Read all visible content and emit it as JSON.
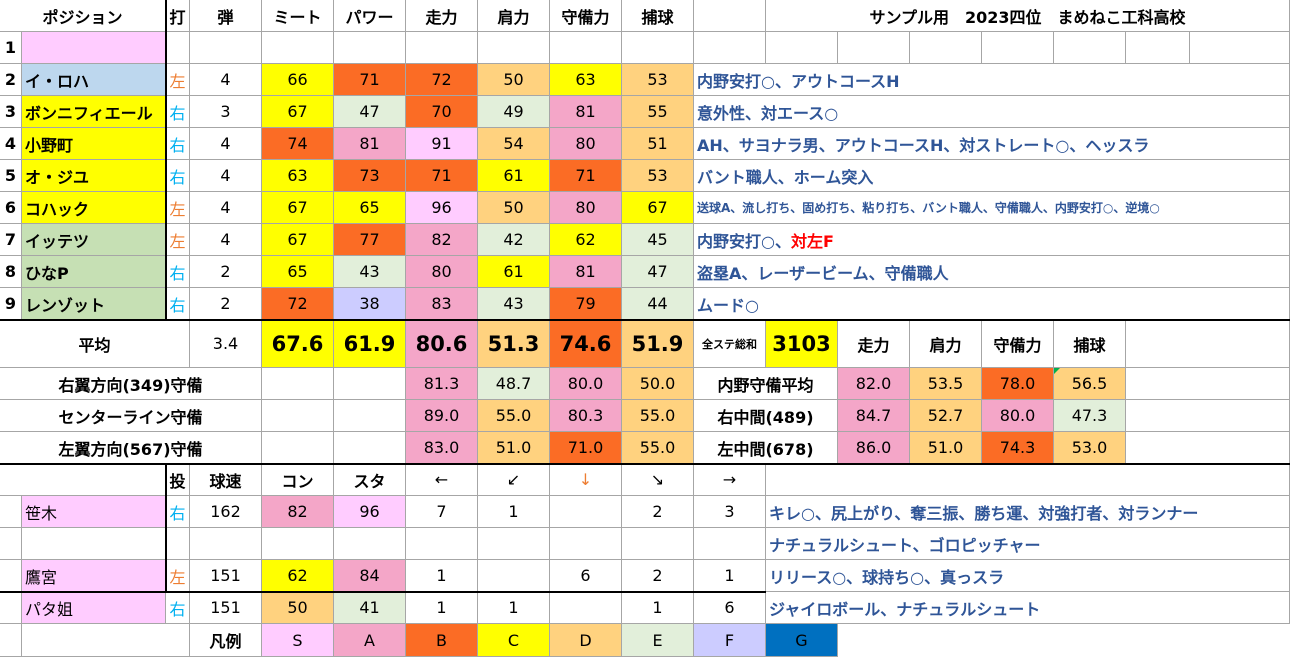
{
  "colors": {
    "S": "#ffccff",
    "A": "#f4a6c8",
    "B": "#fb6c25",
    "C": "#ffff00",
    "D": "#ffd27f",
    "E": "#e2efda",
    "F": "#ccccff",
    "G": "#0070c0",
    "light_blue": "#bdd7ee",
    "light_green": "#c6e0b4",
    "left": "#ed7d31",
    "right": "#00b0f0",
    "note": "#2f5597"
  },
  "header": {
    "position": "ポジション",
    "bat": "打",
    "ballistic": "弾",
    "meet": "ミート",
    "power": "パワー",
    "run": "走力",
    "arm": "肩力",
    "defense": "守備力",
    "catch": "捕球",
    "title": "サンプル用　2023四位　まめねこ工科高校"
  },
  "batters": [
    {
      "no": "1",
      "name": "",
      "hand": "",
      "ballistic": "",
      "meet": "",
      "power": "",
      "run": "",
      "arm": "",
      "defense": "",
      "catch": "",
      "note": ""
    },
    {
      "no": "2",
      "name": "イ・ロハ",
      "hand": "左",
      "ballistic": "4",
      "meet": "66",
      "power": "71",
      "run": "72",
      "arm": "50",
      "defense": "63",
      "catch": "53",
      "note": "内野安打○、アウトコースH"
    },
    {
      "no": "3",
      "name": "ボンニフィエール",
      "hand": "右",
      "ballistic": "3",
      "meet": "67",
      "power": "47",
      "run": "70",
      "arm": "49",
      "defense": "81",
      "catch": "55",
      "note": "意外性、対エース○"
    },
    {
      "no": "4",
      "name": "小野町",
      "hand": "右",
      "ballistic": "4",
      "meet": "74",
      "power": "81",
      "run": "91",
      "arm": "54",
      "defense": "80",
      "catch": "51",
      "note": "AH、サヨナラ男、アウトコースH、対ストレート○、ヘッスラ"
    },
    {
      "no": "5",
      "name": "オ・ジユ",
      "hand": "右",
      "ballistic": "4",
      "meet": "63",
      "power": "73",
      "run": "71",
      "arm": "61",
      "defense": "71",
      "catch": "53",
      "note": "バント職人、ホーム突入"
    },
    {
      "no": "6",
      "name": "コハック",
      "hand": "左",
      "ballistic": "4",
      "meet": "67",
      "power": "65",
      "run": "96",
      "arm": "50",
      "defense": "80",
      "catch": "67",
      "note": "送球A、流し打ち、固め打ち、粘り打ち、バント職人、守備職人、内野安打○、逆境○"
    },
    {
      "no": "7",
      "name": "イッテツ",
      "hand": "左",
      "ballistic": "4",
      "meet": "67",
      "power": "77",
      "run": "82",
      "arm": "42",
      "defense": "62",
      "catch": "45",
      "note": "内野安打○、",
      "note_red": "対左F"
    },
    {
      "no": "8",
      "name": "ひなP",
      "hand": "右",
      "ballistic": "2",
      "meet": "65",
      "power": "43",
      "run": "80",
      "arm": "61",
      "defense": "81",
      "catch": "47",
      "note": "盗塁A、レーザービーム、守備職人"
    },
    {
      "no": "9",
      "name": "レンゾット",
      "hand": "右",
      "ballistic": "2",
      "meet": "72",
      "power": "38",
      "run": "83",
      "arm": "43",
      "defense": "79",
      "catch": "44",
      "note": "ムード○"
    }
  ],
  "averages": {
    "label": "平均",
    "ballistic": "3.4",
    "meet": "67.6",
    "power": "61.9",
    "run": "80.6",
    "arm": "51.3",
    "defense": "74.6",
    "catch": "51.9",
    "total_label": "全ステ総和",
    "total": "3103",
    "h_run": "走力",
    "h_arm": "肩力",
    "h_defense": "守備力",
    "h_catch": "捕球"
  },
  "defense_rows": [
    {
      "label": "右翼方向(349)守備",
      "run": "81.3",
      "arm": "48.7",
      "defense": "80.0",
      "catch": "50.0",
      "r_label": "内野守備平均",
      "r_run": "82.0",
      "r_arm": "53.5",
      "r_defense": "78.0",
      "r_catch": "56.5"
    },
    {
      "label": "センターライン守備",
      "run": "89.0",
      "arm": "55.0",
      "defense": "80.3",
      "catch": "55.0",
      "r_label": "右中間(489)",
      "r_run": "84.7",
      "r_arm": "52.7",
      "r_defense": "80.0",
      "r_catch": "47.3"
    },
    {
      "label": "左翼方向(567)守備",
      "run": "83.0",
      "arm": "51.0",
      "defense": "71.0",
      "catch": "55.0",
      "r_label": "左中間(678)",
      "r_run": "86.0",
      "r_arm": "51.0",
      "r_defense": "74.3",
      "r_catch": "53.0"
    }
  ],
  "pitcher_header": {
    "throw": "投",
    "speed": "球速",
    "control": "コン",
    "stamina": "スタ",
    "d1": "←",
    "d2": "↙",
    "d3": "↓",
    "d4": "↘",
    "d5": "→"
  },
  "pitchers": [
    {
      "name": "笹木",
      "hand": "右",
      "speed": "162",
      "control": "82",
      "stamina": "96",
      "d1": "7",
      "d2": "1",
      "d3": "",
      "d4": "2",
      "d5": "3",
      "note": "キレ○、尻上がり、奪三振、勝ち運、対強打者、対ランナー"
    },
    {
      "name": "",
      "hand": "",
      "speed": "",
      "control": "",
      "stamina": "",
      "d1": "",
      "d2": "",
      "d3": "",
      "d4": "",
      "d5": "",
      "note": "ナチュラルシュート、ゴロピッチャー"
    },
    {
      "name": "鷹宮",
      "hand": "左",
      "speed": "151",
      "control": "62",
      "stamina": "84",
      "d1": "1",
      "d2": "",
      "d3": "6",
      "d4": "2",
      "d5": "1",
      "note": "リリース○、球持ち○、真っスラ"
    },
    {
      "name": "パタ姐",
      "hand": "右",
      "speed": "151",
      "control": "50",
      "stamina": "41",
      "d1": "1",
      "d2": "1",
      "d3": "",
      "d4": "1",
      "d5": "6",
      "note": "ジャイロボール、ナチュラルシュート"
    }
  ],
  "legend": {
    "label": "凡例",
    "items": [
      "S",
      "A",
      "B",
      "C",
      "D",
      "E",
      "F",
      "G"
    ]
  }
}
